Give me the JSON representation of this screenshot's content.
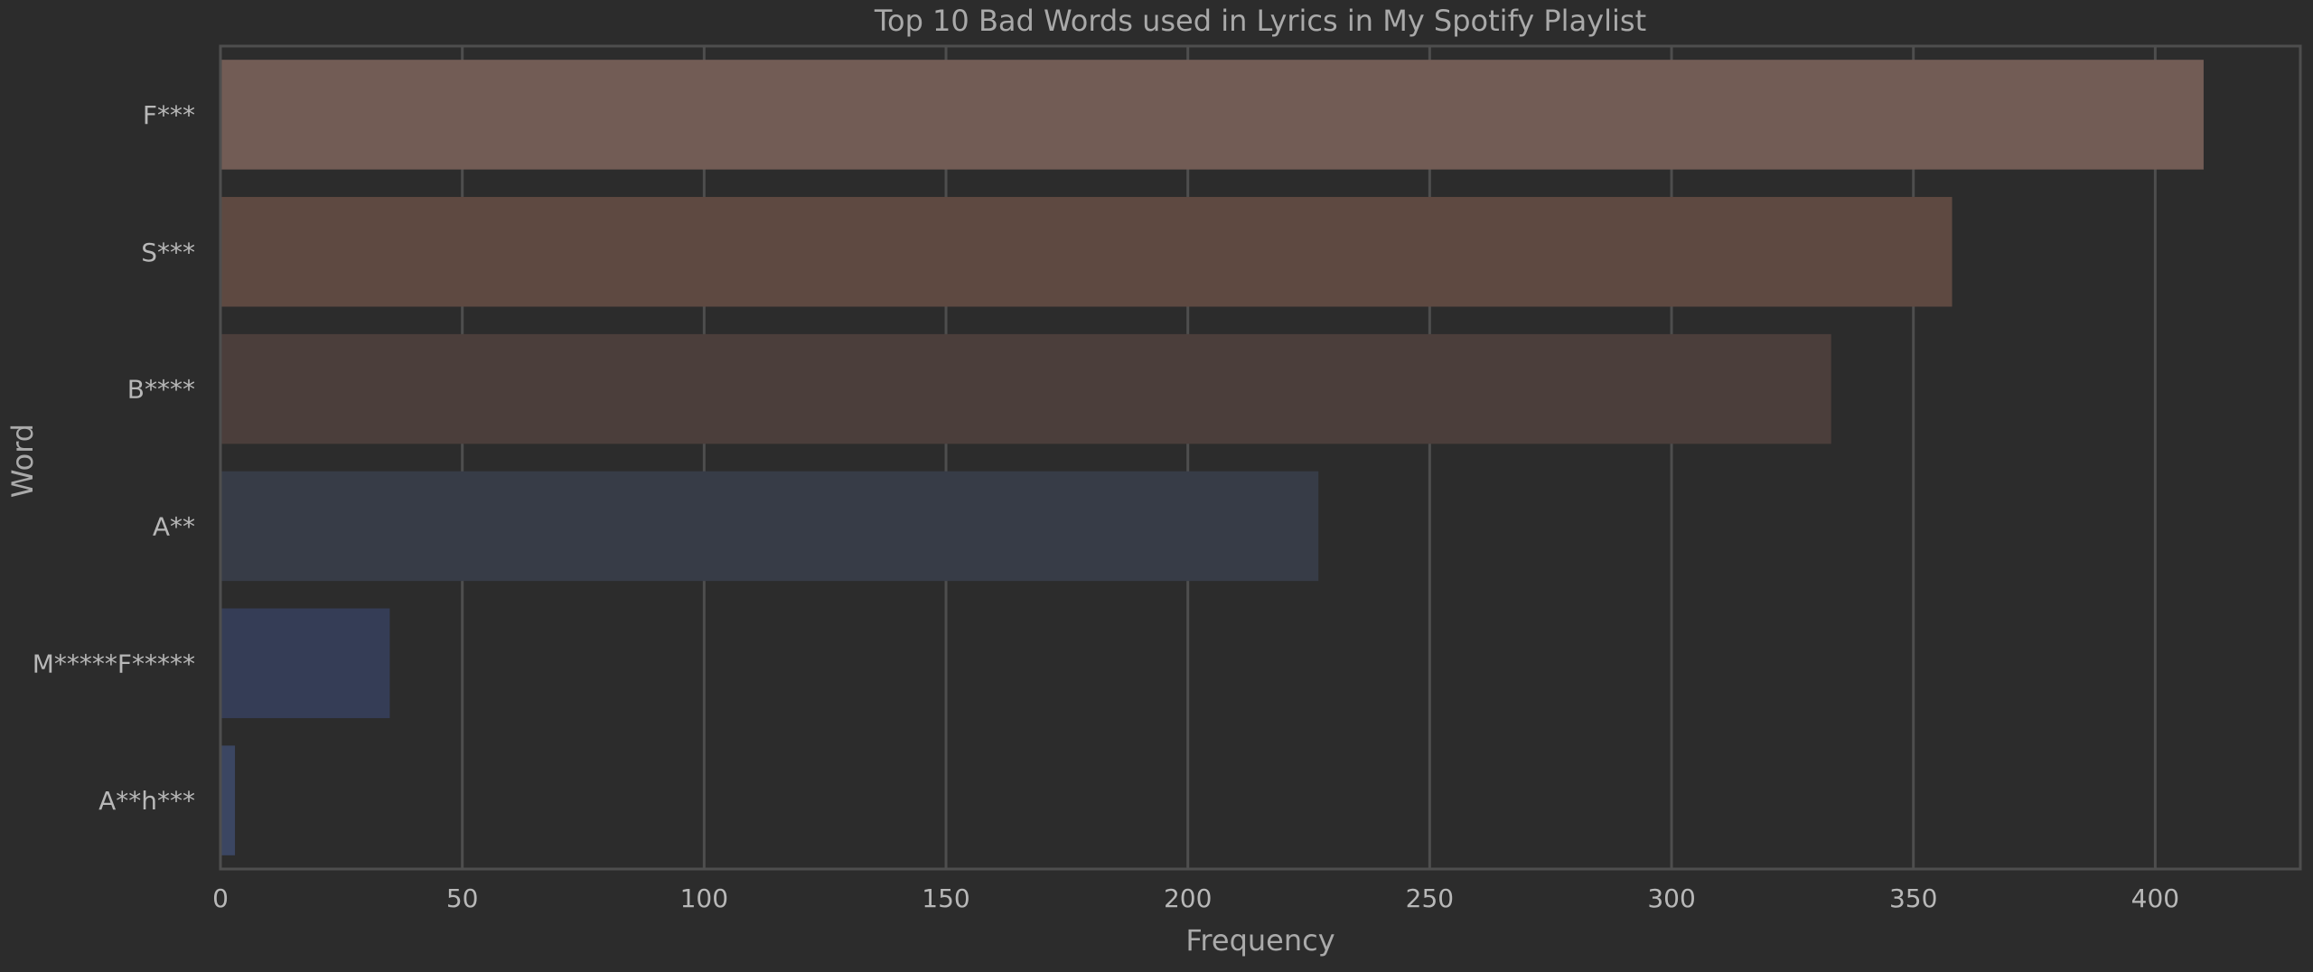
{
  "chart_data": {
    "type": "bar",
    "orientation": "horizontal",
    "title": "Top 10 Bad Words used in Lyrics in My Spotify Playlist",
    "xlabel": "Frequency",
    "ylabel": "Word",
    "categories": [
      "F***",
      "S***",
      "B****",
      "A**",
      "M*****F*****",
      "A**h***"
    ],
    "values": [
      410,
      358,
      333,
      227,
      35,
      3
    ],
    "bar_colors": [
      "#725c55",
      "#5e4941",
      "#4b3e3b",
      "#373c47",
      "#353d56",
      "#3b4662"
    ],
    "xlim": [
      0,
      430
    ],
    "xticks": [
      0,
      50,
      100,
      150,
      200,
      250,
      300,
      350,
      400
    ],
    "grid": true,
    "legend": false
  }
}
